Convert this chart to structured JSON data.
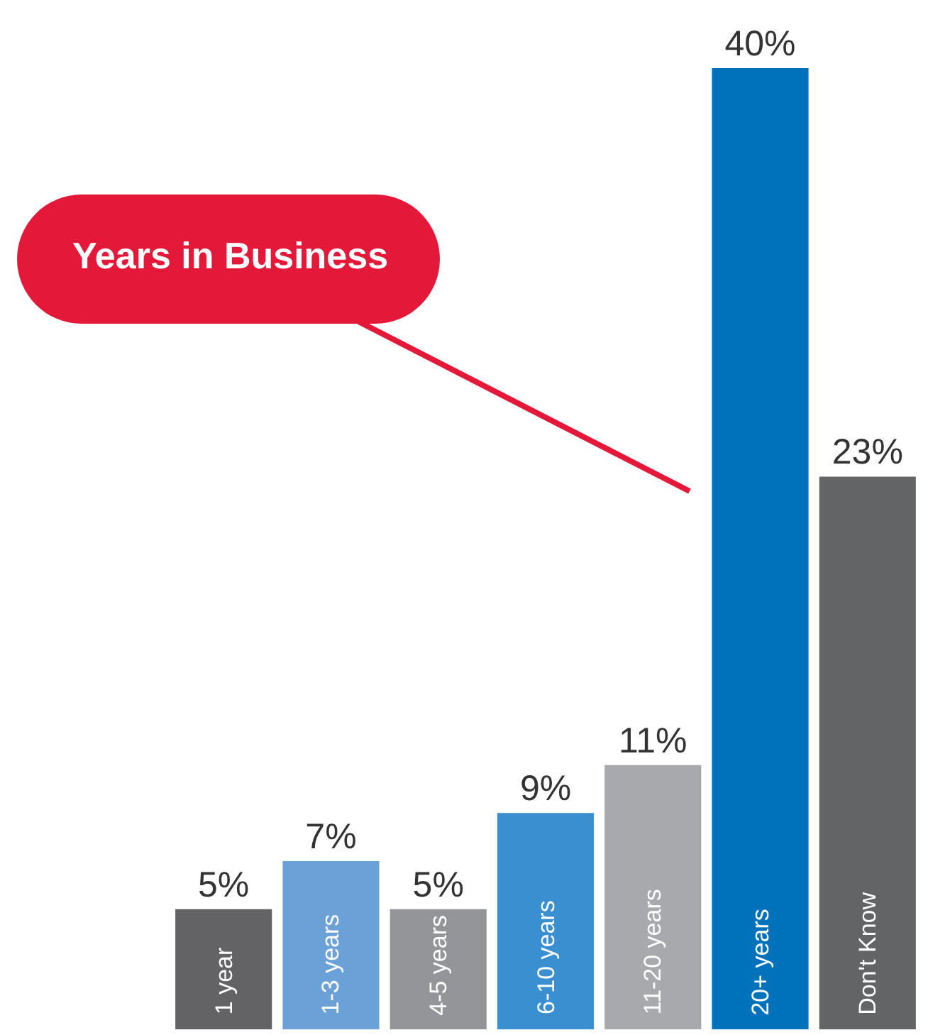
{
  "chart_data": {
    "type": "bar",
    "title": "Years in Business",
    "categories": [
      "1 year",
      "1-3 years",
      "4-5 years",
      "6-10 years",
      "11-20 years",
      "20+ years",
      "Don't Know"
    ],
    "values": [
      5,
      7,
      5,
      9,
      11,
      40,
      23
    ],
    "colors": [
      "#636365",
      "#6aa1d6",
      "#939598",
      "#3a8fd0",
      "#a7a9ac",
      "#0072bc",
      "#636466"
    ],
    "value_labels": [
      "5%",
      "7%",
      "5%",
      "9%",
      "11%",
      "40%",
      "23%"
    ],
    "tick_labels": false,
    "grid": false
  }
}
